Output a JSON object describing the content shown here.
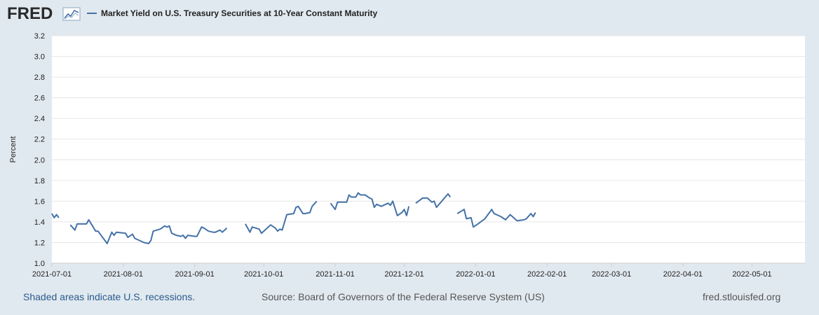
{
  "header": {
    "logo_text": "FRED",
    "legend_label": "Market Yield on U.S. Treasury Securities at 10-Year Constant Maturity"
  },
  "colors": {
    "background": "#e1e9f0",
    "plot_background": "#ffffff",
    "series": "#4572a7",
    "grid": "#e6e6e6",
    "logo": "#2a2a2a"
  },
  "footer": {
    "recessions_note": "Shaded areas indicate U.S. recessions.",
    "source": "Source: Board of Governors of the Federal Reserve System (US)",
    "url": "fred.stlouisfed.org"
  },
  "chart_data": {
    "type": "line",
    "title": "Market Yield on U.S. Treasury Securities at 10-Year Constant Maturity",
    "ylabel": "Percent",
    "xlabel": "",
    "xlim": [
      "2021-07-01",
      "2022-05-24"
    ],
    "ylim": [
      1.0,
      3.2
    ],
    "yticks": [
      1.0,
      1.2,
      1.4,
      1.6,
      1.8,
      2.0,
      2.2,
      2.4,
      2.6,
      2.8,
      3.0,
      3.2
    ],
    "xticks": [
      "2021-07-01",
      "2021-08-01",
      "2021-09-01",
      "2021-10-01",
      "2021-11-01",
      "2021-12-01",
      "2022-01-01",
      "2022-02-01",
      "2022-03-01",
      "2022-04-01",
      "2022-05-01"
    ],
    "grid": true,
    "series": [
      {
        "name": "Market Yield on U.S. Treasury Securities at 10-Year Constant Maturity",
        "segments": [
          [
            [
              "2021-07-01",
              1.48
            ],
            [
              "2021-07-02",
              1.44
            ],
            [
              "2021-07-03",
              1.47
            ],
            [
              "2021-07-04",
              1.44
            ]
          ],
          [
            [
              "2021-07-09",
              1.37
            ],
            [
              "2021-07-11",
              1.32
            ],
            [
              "2021-07-12",
              1.38
            ],
            [
              "2021-07-14",
              1.38
            ],
            [
              "2021-07-16",
              1.38
            ],
            [
              "2021-07-17",
              1.42
            ],
            [
              "2021-07-20",
              1.31
            ],
            [
              "2021-07-21",
              1.31
            ],
            [
              "2021-07-25",
              1.19
            ],
            [
              "2021-07-27",
              1.3
            ],
            [
              "2021-07-28",
              1.27
            ],
            [
              "2021-07-29",
              1.3
            ],
            [
              "2021-08-02",
              1.29
            ],
            [
              "2021-08-03",
              1.25
            ],
            [
              "2021-08-05",
              1.28
            ],
            [
              "2021-08-06",
              1.24
            ],
            [
              "2021-08-08",
              1.22
            ],
            [
              "2021-08-10",
              1.2
            ],
            [
              "2021-08-12",
              1.19
            ],
            [
              "2021-08-13",
              1.22
            ],
            [
              "2021-08-14",
              1.31
            ],
            [
              "2021-08-17",
              1.33
            ],
            [
              "2021-08-19",
              1.36
            ],
            [
              "2021-08-20",
              1.35
            ],
            [
              "2021-08-21",
              1.36
            ],
            [
              "2021-08-22",
              1.29
            ],
            [
              "2021-08-24",
              1.27
            ],
            [
              "2021-08-26",
              1.26
            ],
            [
              "2021-08-27",
              1.27
            ],
            [
              "2021-08-28",
              1.24
            ],
            [
              "2021-08-29",
              1.27
            ],
            [
              "2021-09-01",
              1.26
            ],
            [
              "2021-09-02",
              1.26
            ],
            [
              "2021-09-04",
              1.35
            ],
            [
              "2021-09-05",
              1.34
            ],
            [
              "2021-09-07",
              1.31
            ],
            [
              "2021-09-09",
              1.3
            ],
            [
              "2021-09-10",
              1.3
            ],
            [
              "2021-09-12",
              1.32
            ],
            [
              "2021-09-13",
              1.3
            ],
            [
              "2021-09-15",
              1.34
            ]
          ],
          [
            [
              "2021-09-23",
              1.38
            ],
            [
              "2021-09-25",
              1.3
            ],
            [
              "2021-09-26",
              1.35
            ],
            [
              "2021-09-29",
              1.33
            ],
            [
              "2021-09-30",
              1.29
            ],
            [
              "2021-10-01",
              1.31
            ],
            [
              "2021-10-04",
              1.37
            ],
            [
              "2021-10-06",
              1.34
            ],
            [
              "2021-10-07",
              1.31
            ],
            [
              "2021-10-08",
              1.33
            ],
            [
              "2021-10-09",
              1.32
            ],
            [
              "2021-10-11",
              1.47
            ],
            [
              "2021-10-14",
              1.48
            ],
            [
              "2021-10-15",
              1.54
            ],
            [
              "2021-10-16",
              1.55
            ],
            [
              "2021-10-18",
              1.48
            ],
            [
              "2021-10-19",
              1.48
            ],
            [
              "2021-10-21",
              1.49
            ],
            [
              "2021-10-22",
              1.55
            ],
            [
              "2021-10-24",
              1.6
            ]
          ],
          [
            [
              "2021-10-30",
              1.58
            ],
            [
              "2021-11-01",
              1.52
            ],
            [
              "2021-11-02",
              1.59
            ],
            [
              "2021-11-06",
              1.59
            ],
            [
              "2021-11-07",
              1.66
            ],
            [
              "2021-11-08",
              1.64
            ],
            [
              "2021-11-10",
              1.64
            ],
            [
              "2021-11-11",
              1.68
            ],
            [
              "2021-11-12",
              1.66
            ],
            [
              "2021-11-14",
              1.66
            ],
            [
              "2021-11-16",
              1.63
            ],
            [
              "2021-11-17",
              1.62
            ],
            [
              "2021-11-18",
              1.54
            ],
            [
              "2021-11-19",
              1.57
            ],
            [
              "2021-11-21",
              1.55
            ],
            [
              "2021-11-23",
              1.57
            ],
            [
              "2021-11-24",
              1.58
            ],
            [
              "2021-11-25",
              1.56
            ],
            [
              "2021-11-26",
              1.6
            ],
            [
              "2021-11-28",
              1.46
            ],
            [
              "2021-11-30",
              1.49
            ],
            [
              "2021-12-01",
              1.52
            ],
            [
              "2021-12-02",
              1.46
            ],
            [
              "2021-12-03",
              1.55
            ]
          ],
          [
            [
              "2021-12-06",
              1.58
            ],
            [
              "2021-12-09",
              1.63
            ],
            [
              "2021-12-11",
              1.63
            ],
            [
              "2021-12-13",
              1.59
            ],
            [
              "2021-12-14",
              1.6
            ],
            [
              "2021-12-15",
              1.54
            ],
            [
              "2021-12-20",
              1.67
            ],
            [
              "2021-12-21",
              1.64
            ]
          ],
          [
            [
              "2021-12-24",
              1.48
            ],
            [
              "2021-12-27",
              1.52
            ],
            [
              "2021-12-28",
              1.43
            ],
            [
              "2021-12-30",
              1.44
            ],
            [
              "2021-12-31",
              1.35
            ],
            [
              "2022-01-02",
              1.38
            ],
            [
              "2022-01-05",
              1.43
            ],
            [
              "2022-01-08",
              1.52
            ],
            [
              "2022-01-09",
              1.48
            ],
            [
              "2022-01-11",
              1.46
            ],
            [
              "2022-01-12",
              1.45
            ],
            [
              "2022-01-14",
              1.42
            ],
            [
              "2022-01-16",
              1.47
            ],
            [
              "2022-01-19",
              1.41
            ],
            [
              "2022-01-22",
              1.42
            ],
            [
              "2022-01-23",
              1.43
            ],
            [
              "2022-01-25",
              1.48
            ],
            [
              "2022-01-26",
              1.45
            ],
            [
              "2022-01-27",
              1.49
            ]
          ]
        ]
      }
    ]
  }
}
